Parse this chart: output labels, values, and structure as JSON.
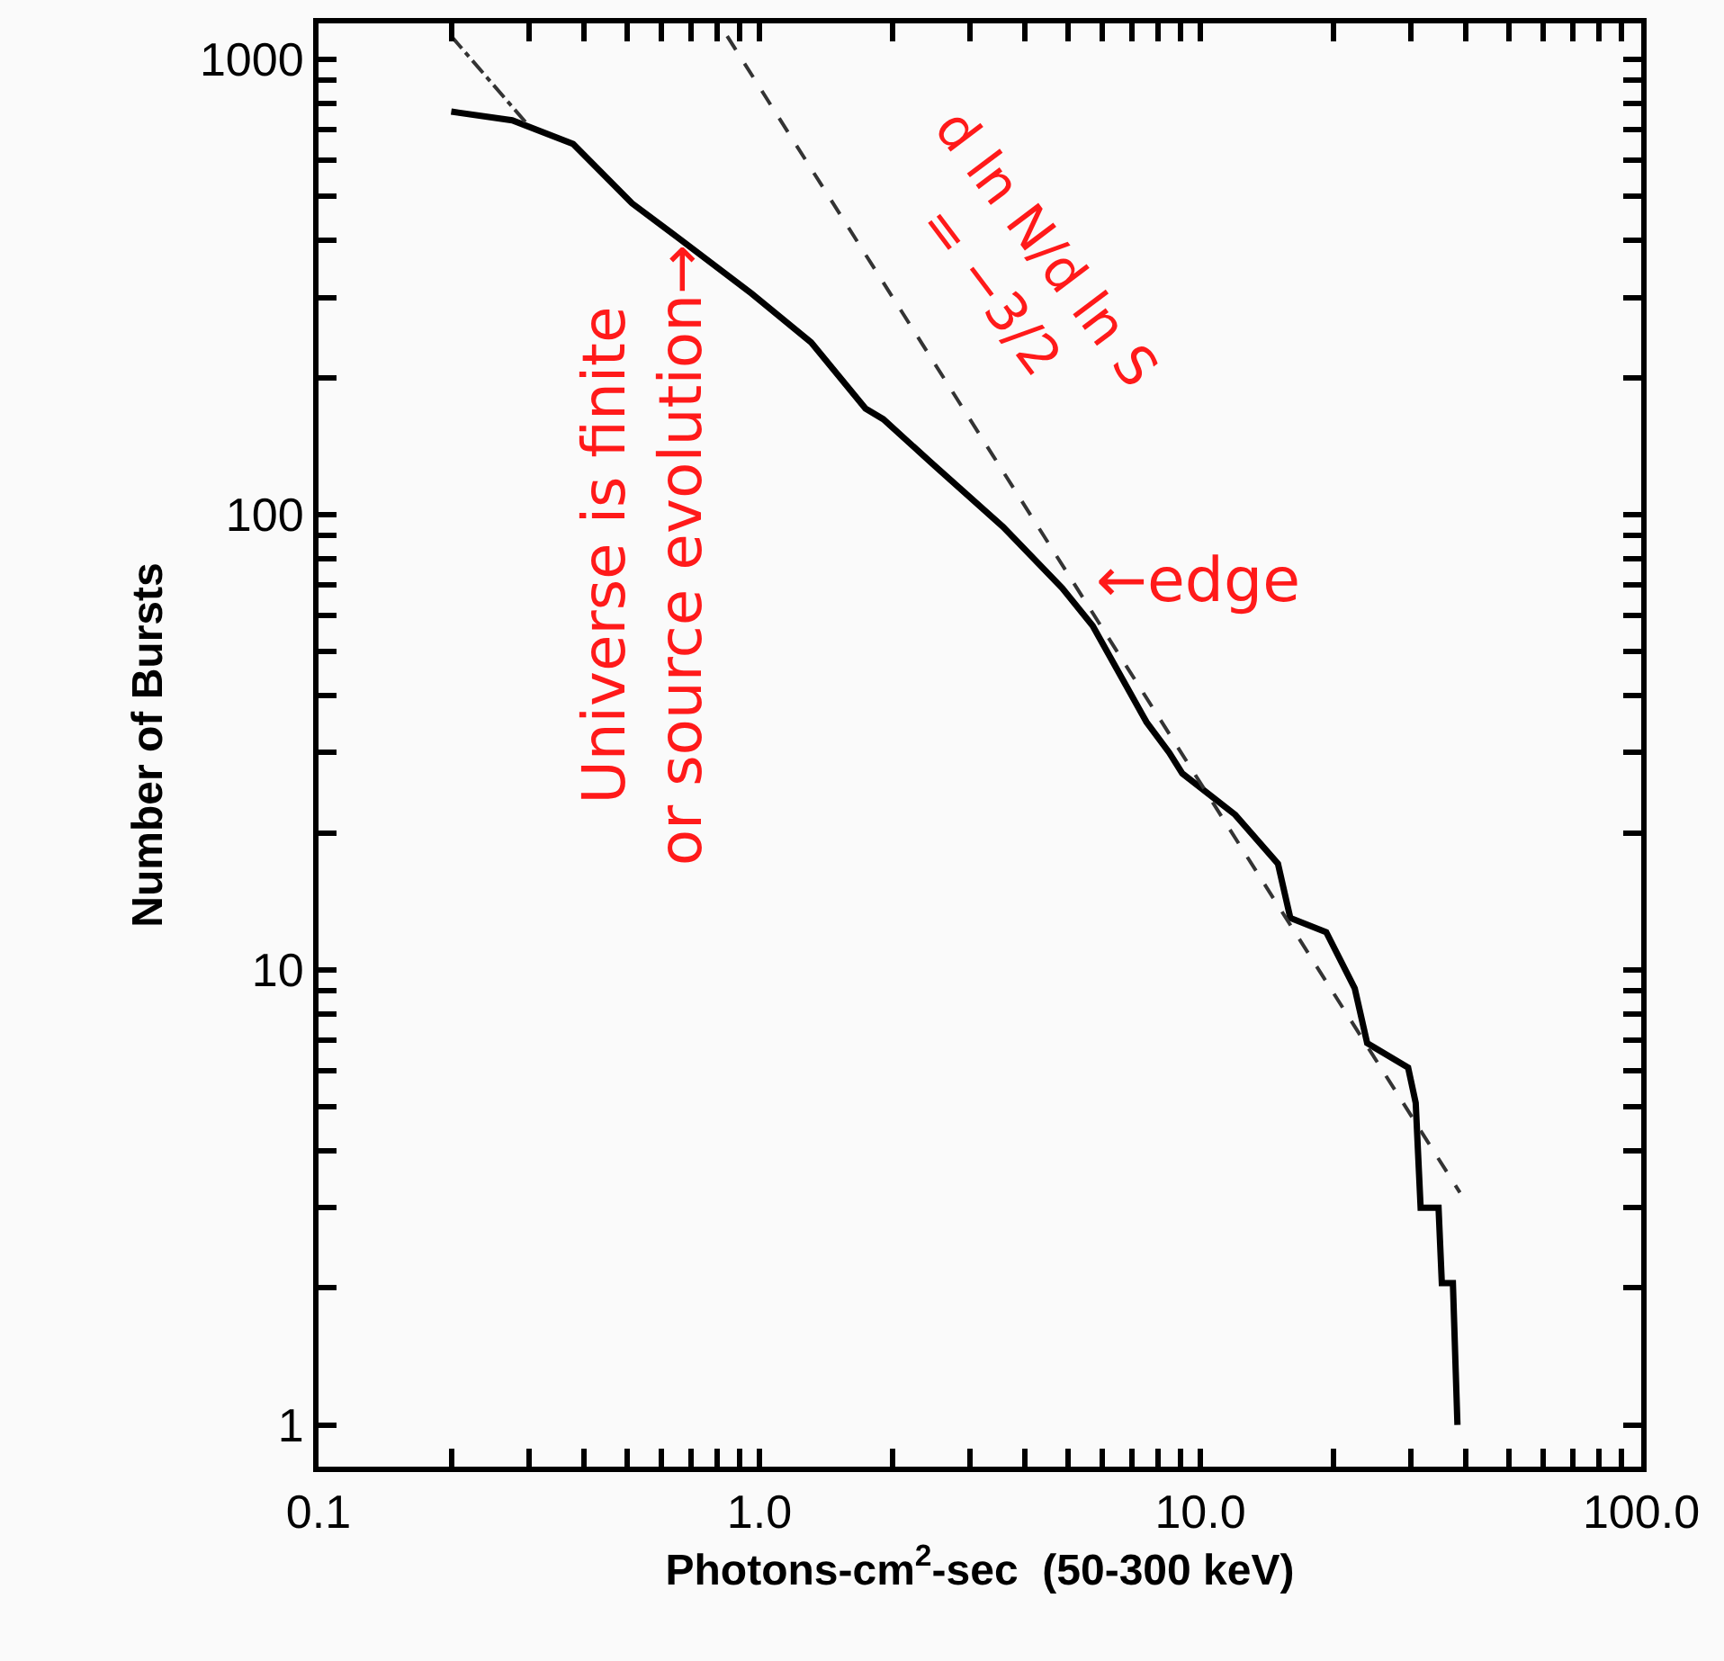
{
  "chart_data": {
    "type": "line",
    "xlabel": "Photons-cm$^{2}$-sec  (50-300 keV)",
    "ylabel": "Number of Bursts",
    "log": "xy",
    "grid": false,
    "marker": "none",
    "xlim": [
      0.1,
      100
    ],
    "ylim": [
      0.81,
      1200
    ],
    "xticks": [
      {
        "value": 0.1,
        "label": "0.1"
      },
      {
        "value": 0.2,
        "label": null
      },
      {
        "value": 0.3,
        "label": null
      },
      {
        "value": 0.4,
        "label": null
      },
      {
        "value": 0.5,
        "label": null
      },
      {
        "value": 0.6,
        "label": null
      },
      {
        "value": 0.7,
        "label": null
      },
      {
        "value": 0.8,
        "label": null
      },
      {
        "value": 0.9,
        "label": null
      },
      {
        "value": 1,
        "label": "1.0"
      },
      {
        "value": 2,
        "label": null
      },
      {
        "value": 3,
        "label": null
      },
      {
        "value": 4,
        "label": null
      },
      {
        "value": 5,
        "label": null
      },
      {
        "value": 6,
        "label": null
      },
      {
        "value": 7,
        "label": null
      },
      {
        "value": 8,
        "label": null
      },
      {
        "value": 9,
        "label": null
      },
      {
        "value": 10,
        "label": "10.0"
      },
      {
        "value": 20,
        "label": null
      },
      {
        "value": 30,
        "label": null
      },
      {
        "value": 40,
        "label": null
      },
      {
        "value": 50,
        "label": null
      },
      {
        "value": 60,
        "label": null
      },
      {
        "value": 70,
        "label": null
      },
      {
        "value": 80,
        "label": null
      },
      {
        "value": 90,
        "label": null
      },
      {
        "value": 100,
        "label": "100.0"
      }
    ],
    "yticks": [
      1,
      {
        "value": 2,
        "label": null
      },
      {
        "value": 3,
        "label": null
      },
      {
        "value": 4,
        "label": null
      },
      {
        "value": 5,
        "label": null
      },
      {
        "value": 6,
        "label": null
      },
      {
        "value": 7,
        "label": null
      },
      {
        "value": 8,
        "label": null
      },
      {
        "value": 9,
        "label": null
      },
      10,
      {
        "value": 20,
        "label": null
      },
      {
        "value": 30,
        "label": null
      },
      {
        "value": 40,
        "label": null
      },
      {
        "value": 50,
        "label": null
      },
      {
        "value": 60,
        "label": null
      },
      {
        "value": 70,
        "label": null
      },
      {
        "value": 80,
        "label": null
      },
      {
        "value": 90,
        "label": null
      },
      100,
      {
        "value": 200,
        "label": null
      },
      {
        "value": 300,
        "label": null
      },
      {
        "value": 400,
        "label": null
      },
      {
        "value": 500,
        "label": null
      },
      {
        "value": 600,
        "label": null
      },
      {
        "value": 700,
        "label": null
      },
      {
        "value": 800,
        "label": null
      },
      {
        "value": 900,
        "label": null
      },
      1000
    ],
    "series": [
      {
        "color": "#000000",
        "line_style": "solid",
        "x": [
          0.2,
          0.275,
          0.378,
          0.514,
          0.66,
          0.96,
          1.31,
          1.74,
          1.91,
          2.52,
          3.57,
          4.86,
          5.7,
          7.55,
          8.5,
          9.1,
          12,
          15,
          16,
          19.3,
          22.4,
          23.9,
          29.6,
          30.8,
          31.6,
          34.7,
          35.3,
          37.4,
          38.3
        ],
        "values": [
          768,
          735,
          652,
          483,
          403,
          306,
          239,
          171,
          162,
          127,
          94,
          69,
          57,
          35,
          30,
          27,
          21.9,
          17.1,
          13,
          12.1,
          9.1,
          6.9,
          6.1,
          5.1,
          3,
          3,
          2.05,
          2.05,
          1
        ]
      },
      {
        "color": "#333333",
        "line_style": "dashed",
        "x": [
          0.845,
          38.8
        ],
        "values": [
          1125,
          3.24
        ]
      },
      {
        "color": "#333333",
        "line_style": "dashdot",
        "x": [
          0.2,
          0.3
        ],
        "values": [
          1125,
          714
        ]
      }
    ],
    "annotations": [
      {
        "text": "Universe is finite\nor source evolution→",
        "x": 0.68,
        "y": 400
      },
      "d ln N/d ln S\n= −3/2",
      "←edge"
    ]
  }
}
